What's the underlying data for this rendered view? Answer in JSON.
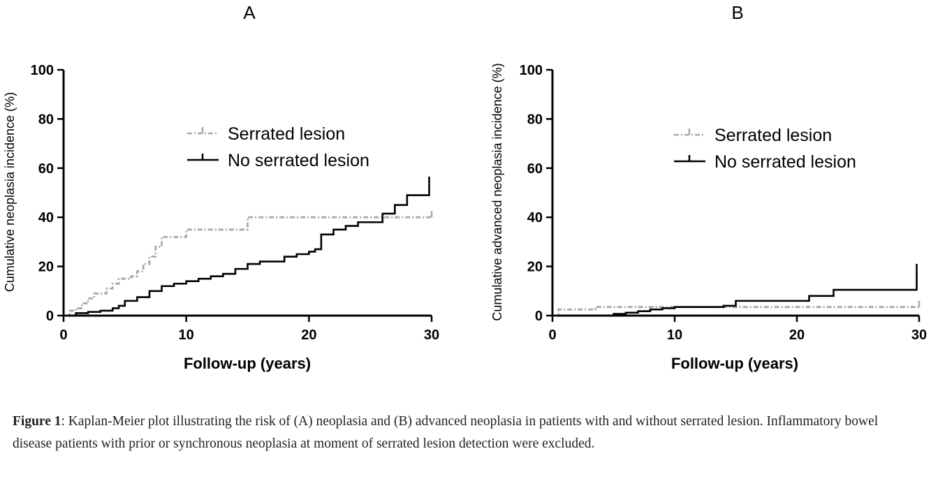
{
  "chart_data": [
    {
      "type": "line",
      "panel_label": "A",
      "xlabel": "Follow-up (years)",
      "ylabel": "Cumulative neoplasia incidence  (%)",
      "xlim": [
        0,
        30
      ],
      "ylim": [
        0,
        100
      ],
      "xticks": [
        "0",
        "10",
        "20",
        "30"
      ],
      "yticks": [
        "0",
        "20",
        "40",
        "60",
        "80",
        "100"
      ],
      "legend_position": "top-center",
      "series": [
        {
          "name": "Serrated lesion",
          "style": "dashed",
          "color": "#a8a8a8",
          "points": [
            [
              0,
              0
            ],
            [
              0.5,
              2
            ],
            [
              1,
              3
            ],
            [
              1.5,
              5
            ],
            [
              2,
              7
            ],
            [
              2.5,
              9
            ],
            [
              3.5,
              11
            ],
            [
              4,
              13
            ],
            [
              4.5,
              15
            ],
            [
              5.5,
              16
            ],
            [
              6,
              18
            ],
            [
              6.5,
              21
            ],
            [
              7,
              24
            ],
            [
              7.5,
              28
            ],
            [
              8,
              32
            ],
            [
              10,
              35
            ],
            [
              15,
              40
            ],
            [
              30,
              40
            ]
          ]
        },
        {
          "name": "No serrated lesion",
          "style": "solid",
          "color": "#000000",
          "points": [
            [
              0,
              0
            ],
            [
              1,
              1
            ],
            [
              2,
              1.5
            ],
            [
              3,
              2
            ],
            [
              4,
              3
            ],
            [
              4.5,
              4
            ],
            [
              5,
              6
            ],
            [
              6,
              7.5
            ],
            [
              7,
              10
            ],
            [
              8,
              12
            ],
            [
              9,
              13
            ],
            [
              10,
              14
            ],
            [
              11,
              15
            ],
            [
              12,
              16
            ],
            [
              13,
              17
            ],
            [
              14,
              19
            ],
            [
              15,
              21
            ],
            [
              16,
              22
            ],
            [
              18,
              24
            ],
            [
              19,
              25
            ],
            [
              20,
              26
            ],
            [
              20.5,
              27
            ],
            [
              21,
              33
            ],
            [
              22,
              35
            ],
            [
              23,
              36.5
            ],
            [
              24,
              38
            ],
            [
              26,
              41.5
            ],
            [
              27,
              45
            ],
            [
              28,
              49
            ],
            [
              29.8,
              54
            ]
          ]
        }
      ]
    },
    {
      "type": "line",
      "panel_label": "B",
      "xlabel": "Follow-up (years)",
      "ylabel": "Cumulative advanced neoplasia incidence  (%)",
      "xlim": [
        0,
        30
      ],
      "ylim": [
        0,
        100
      ],
      "xticks": [
        "0",
        "10",
        "20",
        "30"
      ],
      "yticks": [
        "0",
        "20",
        "40",
        "60",
        "80",
        "100"
      ],
      "legend_position": "top-center",
      "series": [
        {
          "name": "Serrated lesion",
          "style": "dashed",
          "color": "#a8a8a8",
          "points": [
            [
              0,
              0
            ],
            [
              0.5,
              2.5
            ],
            [
              3.5,
              3.5
            ],
            [
              30,
              3.5
            ]
          ]
        },
        {
          "name": "No serrated lesion",
          "style": "solid",
          "color": "#000000",
          "points": [
            [
              0,
              0
            ],
            [
              4,
              0
            ],
            [
              5,
              0.7
            ],
            [
              6,
              1.2
            ],
            [
              7,
              1.8
            ],
            [
              8,
              2.5
            ],
            [
              9,
              3
            ],
            [
              10,
              3.5
            ],
            [
              14,
              4
            ],
            [
              15,
              6
            ],
            [
              21,
              8
            ],
            [
              23,
              10.5
            ],
            [
              29.8,
              18.5
            ]
          ]
        }
      ]
    }
  ],
  "caption": {
    "label": "Figure 1",
    "text": ": Kaplan-Meier plot illustrating the risk of (A) neoplasia and (B) advanced neoplasia in patients with and without serrated lesion. Inflammatory bowel disease patients with prior or synchronous neoplasia at moment of serrated lesion detection were excluded."
  }
}
